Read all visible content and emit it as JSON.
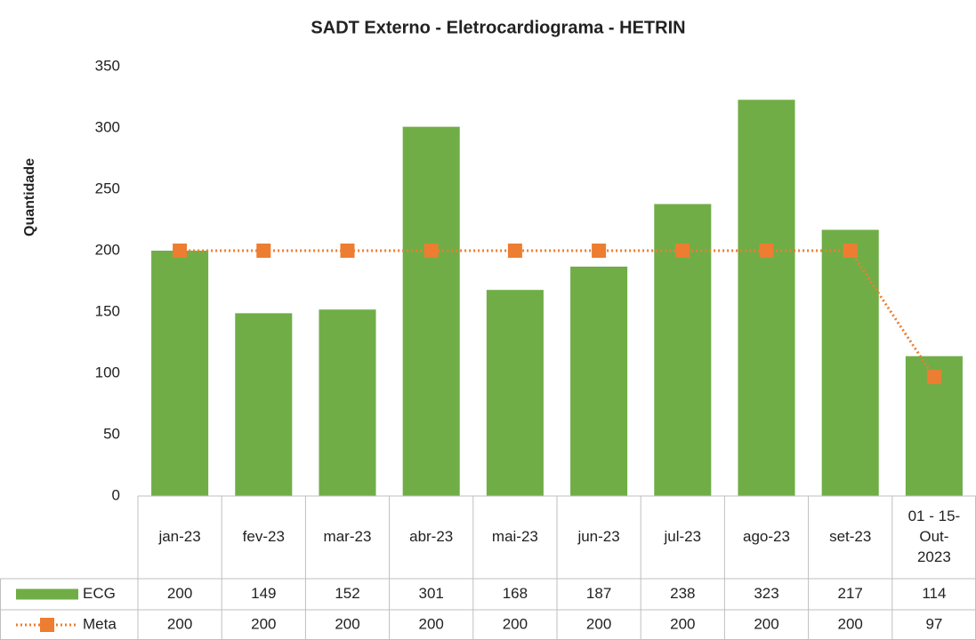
{
  "chart_data": {
    "type": "bar",
    "title": "SADT Externo - Eletrocardiograma - HETRIN",
    "y_label": "Quantidade",
    "categories": [
      "jan-23",
      "fev-23",
      "mar-23",
      "abr-23",
      "mai-23",
      "jun-23",
      "jul-23",
      "ago-23",
      "set-23",
      "01 - 15-Out-2023"
    ],
    "series": [
      {
        "name": "ECG",
        "type": "bar",
        "color": "#70ad47",
        "values": [
          200,
          149,
          152,
          301,
          168,
          187,
          238,
          323,
          217,
          114
        ]
      },
      {
        "name": "Meta",
        "type": "line",
        "color": "#ed7d31",
        "values": [
          200,
          200,
          200,
          200,
          200,
          200,
          200,
          200,
          200,
          97
        ]
      }
    ],
    "ylim": [
      0,
      350
    ],
    "yticks": [
      0,
      50,
      100,
      150,
      200,
      250,
      300,
      350
    ],
    "grid": false,
    "data_table": true
  }
}
